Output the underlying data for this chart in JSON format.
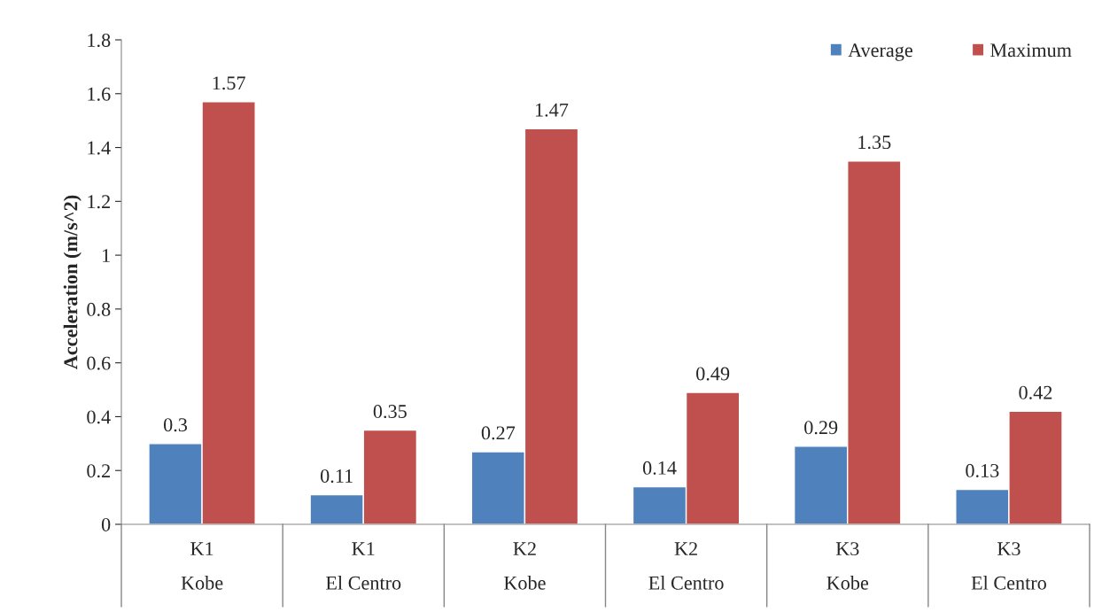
{
  "chart_data": {
    "type": "bar",
    "ylabel": "Acceleration (m/s^2)",
    "categories": [
      "K1\nKobe",
      "K1\nEl Centro",
      "K2\nKobe",
      "K2\nEl Centro",
      "K3\nKobe",
      "K3\nEl Centro"
    ],
    "series": [
      {
        "name": "Average",
        "color": "#4f81bd",
        "values": [
          0.3,
          0.11,
          0.27,
          0.14,
          0.29,
          0.13
        ]
      },
      {
        "name": "Maximum",
        "color": "#c0504d",
        "values": [
          1.57,
          0.35,
          1.47,
          0.49,
          1.35,
          0.42
        ]
      }
    ],
    "ylim": [
      0,
      1.8
    ],
    "yticks": [
      0,
      0.2,
      0.4,
      0.6,
      0.8,
      1,
      1.2,
      1.4,
      1.6,
      1.8
    ],
    "data_labels": true,
    "grid": false,
    "legend": "top right"
  }
}
